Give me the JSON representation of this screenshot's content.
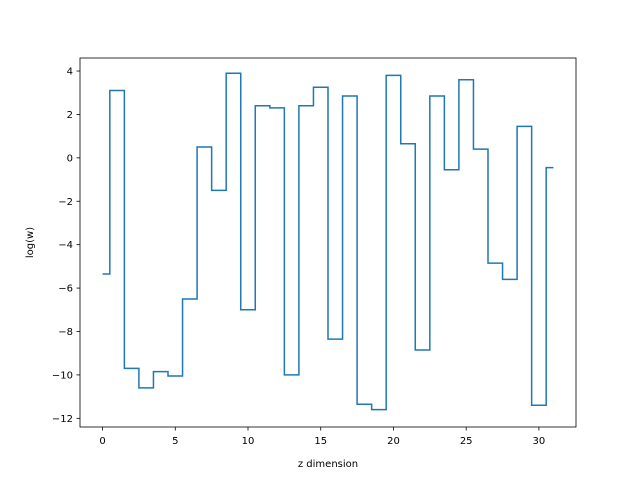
{
  "chart_data": {
    "type": "line",
    "drawstyle": "steps-mid",
    "xlabel": "z dimension",
    "ylabel": "log(w)",
    "xlim": [
      -1.55,
      32.55
    ],
    "ylim": [
      -12.4,
      4.6
    ],
    "xticks": [
      0,
      5,
      10,
      15,
      20,
      25,
      30
    ],
    "xtick_labels": [
      "0",
      "5",
      "10",
      "15",
      "20",
      "25",
      "30"
    ],
    "yticks": [
      -12,
      -10,
      -8,
      -6,
      -4,
      -2,
      0,
      2,
      4
    ],
    "ytick_labels": [
      "−12",
      "−10",
      "−8",
      "−6",
      "−4",
      "−2",
      "0",
      "2",
      "4"
    ],
    "grid": false,
    "series": [
      {
        "color": "#1f77b4",
        "x": [
          0,
          1,
          2,
          3,
          4,
          5,
          6,
          7,
          8,
          9,
          10,
          11,
          12,
          13,
          14,
          15,
          16,
          17,
          18,
          19,
          20,
          21,
          22,
          23,
          24,
          25,
          26,
          27,
          28,
          29,
          30,
          31
        ],
        "y": [
          -5.35,
          3.1,
          -9.7,
          -10.6,
          -9.85,
          -10.05,
          -6.5,
          0.5,
          -1.5,
          3.9,
          -7.0,
          2.4,
          2.3,
          -10.0,
          2.4,
          3.25,
          -8.35,
          2.85,
          -11.35,
          -11.6,
          3.8,
          0.65,
          -8.85,
          2.85,
          -0.55,
          3.6,
          0.4,
          -4.85,
          -5.6,
          1.45,
          -11.4,
          -0.45
        ]
      }
    ]
  }
}
